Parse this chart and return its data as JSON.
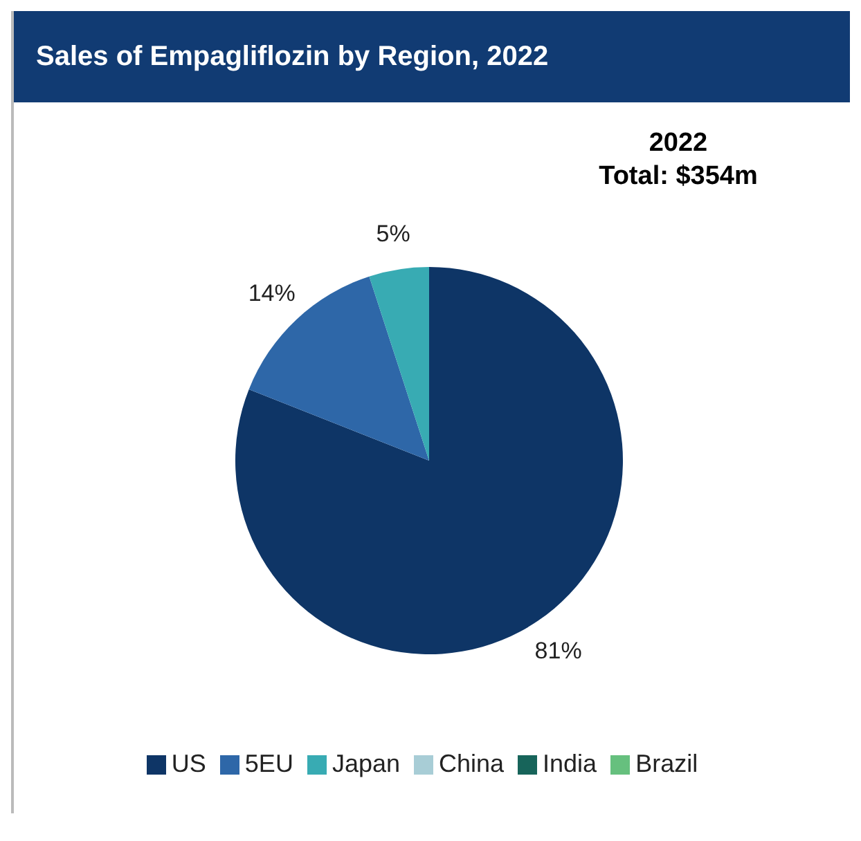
{
  "chart_data": {
    "type": "pie",
    "title": "Sales of Empagliflozin by Region, 2022",
    "annotations": [
      "2022",
      "Total: $354m"
    ],
    "categories": [
      "US",
      "5EU",
      "Japan",
      "China",
      "India",
      "Brazil"
    ],
    "values": [
      81,
      14,
      5,
      0,
      0,
      0
    ],
    "value_labels": [
      "81%",
      "14%",
      "5%",
      null,
      null,
      null
    ],
    "colors": [
      "#0e3566",
      "#2e67a8",
      "#38abb3",
      "#a8cdd6",
      "#17645a",
      "#66c07e"
    ],
    "legend": "bottom"
  }
}
